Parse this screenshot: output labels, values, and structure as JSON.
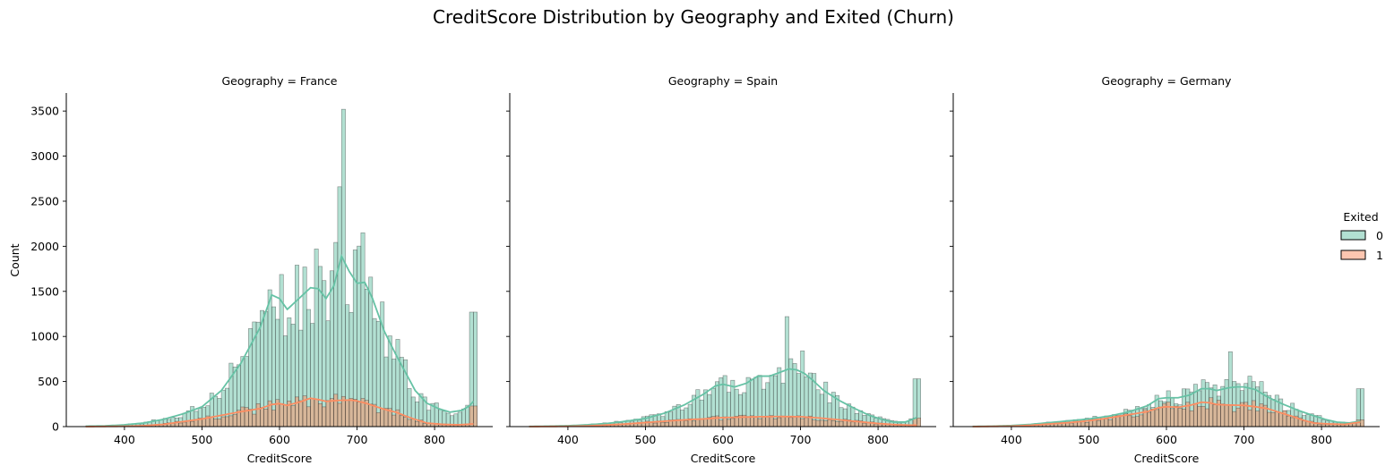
{
  "colors": {
    "exited_0": "#66c2a5",
    "exited_1": "#fc8d62",
    "bar_edge": "#333333",
    "text": "#000000"
  },
  "chart_data": {
    "type": "histogram",
    "title": "CreditScore Distribution by Geography and Exited (Churn)",
    "xlabel": "CreditScore",
    "ylabel": "Count",
    "xlim": [
      325,
      875
    ],
    "ylim": [
      0,
      3700
    ],
    "x_ticks": [
      400,
      500,
      600,
      700,
      800
    ],
    "y_ticks": [
      0,
      500,
      1000,
      1500,
      2000,
      2500,
      3000,
      3500
    ],
    "bin_start": 350,
    "bin_width": 5,
    "kde": true,
    "legend": {
      "title": "Exited",
      "entries": [
        "0",
        "1"
      ],
      "placement": "right"
    },
    "panels": [
      {
        "title": "Geography = France",
        "kde0": [
          [
            350,
            5
          ],
          [
            375,
            8
          ],
          [
            400,
            20
          ],
          [
            425,
            40
          ],
          [
            450,
            80
          ],
          [
            475,
            140
          ],
          [
            500,
            220
          ],
          [
            525,
            400
          ],
          [
            550,
            700
          ],
          [
            575,
            1100
          ],
          [
            590,
            1460
          ],
          [
            600,
            1420
          ],
          [
            610,
            1300
          ],
          [
            625,
            1420
          ],
          [
            640,
            1540
          ],
          [
            650,
            1530
          ],
          [
            660,
            1420
          ],
          [
            670,
            1560
          ],
          [
            680,
            1890
          ],
          [
            690,
            1720
          ],
          [
            700,
            1590
          ],
          [
            710,
            1600
          ],
          [
            720,
            1420
          ],
          [
            735,
            1060
          ],
          [
            750,
            800
          ],
          [
            765,
            560
          ],
          [
            775,
            400
          ],
          [
            790,
            260
          ],
          [
            805,
            200
          ],
          [
            820,
            160
          ],
          [
            835,
            180
          ],
          [
            845,
            230
          ],
          [
            850,
            280
          ]
        ],
        "kde1": [
          [
            350,
            0
          ],
          [
            400,
            4
          ],
          [
            425,
            10
          ],
          [
            450,
            25
          ],
          [
            475,
            55
          ],
          [
            500,
            85
          ],
          [
            525,
            125
          ],
          [
            550,
            165
          ],
          [
            575,
            200
          ],
          [
            590,
            245
          ],
          [
            600,
            255
          ],
          [
            610,
            235
          ],
          [
            625,
            270
          ],
          [
            640,
            315
          ],
          [
            650,
            300
          ],
          [
            660,
            280
          ],
          [
            675,
            290
          ],
          [
            690,
            295
          ],
          [
            700,
            285
          ],
          [
            715,
            250
          ],
          [
            725,
            220
          ],
          [
            740,
            180
          ],
          [
            750,
            160
          ],
          [
            765,
            110
          ],
          [
            775,
            80
          ],
          [
            790,
            40
          ],
          [
            810,
            25
          ],
          [
            830,
            20
          ],
          [
            850,
            30
          ]
        ],
        "spikes": [
          [
            680,
            3520
          ],
          [
            675,
            2660
          ],
          [
            705,
            2150
          ],
          [
            645,
            1970
          ],
          [
            695,
            1960
          ]
        ],
        "end_bar": 1270
      },
      {
        "title": "Geography = Spain",
        "kde0": [
          [
            350,
            2
          ],
          [
            375,
            5
          ],
          [
            400,
            10
          ],
          [
            425,
            20
          ],
          [
            450,
            35
          ],
          [
            475,
            60
          ],
          [
            500,
            90
          ],
          [
            525,
            150
          ],
          [
            550,
            240
          ],
          [
            575,
            360
          ],
          [
            590,
            450
          ],
          [
            600,
            470
          ],
          [
            615,
            440
          ],
          [
            630,
            480
          ],
          [
            645,
            560
          ],
          [
            660,
            560
          ],
          [
            670,
            590
          ],
          [
            685,
            640
          ],
          [
            695,
            630
          ],
          [
            705,
            590
          ],
          [
            715,
            520
          ],
          [
            730,
            400
          ],
          [
            750,
            290
          ],
          [
            770,
            200
          ],
          [
            790,
            120
          ],
          [
            805,
            80
          ],
          [
            820,
            50
          ],
          [
            835,
            50
          ],
          [
            850,
            100
          ]
        ],
        "kde1": [
          [
            350,
            0
          ],
          [
            400,
            3
          ],
          [
            425,
            8
          ],
          [
            450,
            18
          ],
          [
            475,
            30
          ],
          [
            500,
            45
          ],
          [
            525,
            60
          ],
          [
            550,
            75
          ],
          [
            575,
            85
          ],
          [
            600,
            100
          ],
          [
            625,
            105
          ],
          [
            650,
            110
          ],
          [
            675,
            112
          ],
          [
            700,
            110
          ],
          [
            725,
            95
          ],
          [
            750,
            75
          ],
          [
            775,
            55
          ],
          [
            800,
            35
          ],
          [
            825,
            20
          ],
          [
            850,
            15
          ]
        ],
        "spikes": [
          [
            680,
            1220
          ],
          [
            700,
            840
          ],
          [
            690,
            700
          ]
        ],
        "end_bar": 530
      },
      {
        "title": "Geography = Germany",
        "kde0": [
          [
            350,
            2
          ],
          [
            375,
            5
          ],
          [
            400,
            12
          ],
          [
            425,
            25
          ],
          [
            450,
            45
          ],
          [
            475,
            65
          ],
          [
            500,
            85
          ],
          [
            525,
            115
          ],
          [
            550,
            160
          ],
          [
            575,
            230
          ],
          [
            590,
            310
          ],
          [
            600,
            320
          ],
          [
            615,
            320
          ],
          [
            630,
            350
          ],
          [
            645,
            420
          ],
          [
            655,
            420
          ],
          [
            665,
            400
          ],
          [
            680,
            430
          ],
          [
            690,
            440
          ],
          [
            700,
            440
          ],
          [
            715,
            410
          ],
          [
            730,
            330
          ],
          [
            750,
            250
          ],
          [
            770,
            180
          ],
          [
            790,
            120
          ],
          [
            805,
            80
          ],
          [
            820,
            50
          ],
          [
            835,
            40
          ],
          [
            850,
            60
          ]
        ],
        "kde1": [
          [
            350,
            0
          ],
          [
            400,
            5
          ],
          [
            425,
            15
          ],
          [
            450,
            30
          ],
          [
            475,
            45
          ],
          [
            500,
            65
          ],
          [
            525,
            95
          ],
          [
            550,
            130
          ],
          [
            575,
            165
          ],
          [
            590,
            210
          ],
          [
            600,
            220
          ],
          [
            615,
            215
          ],
          [
            630,
            235
          ],
          [
            645,
            270
          ],
          [
            655,
            265
          ],
          [
            665,
            245
          ],
          [
            680,
            240
          ],
          [
            700,
            235
          ],
          [
            715,
            220
          ],
          [
            730,
            200
          ],
          [
            745,
            160
          ],
          [
            760,
            120
          ],
          [
            775,
            75
          ],
          [
            790,
            40
          ],
          [
            810,
            30
          ],
          [
            830,
            25
          ],
          [
            850,
            50
          ]
        ],
        "spikes": [
          [
            680,
            830
          ],
          [
            705,
            560
          ],
          [
            720,
            500
          ],
          [
            645,
            520
          ],
          [
            650,
            490
          ]
        ],
        "end_bar": 420
      }
    ]
  }
}
